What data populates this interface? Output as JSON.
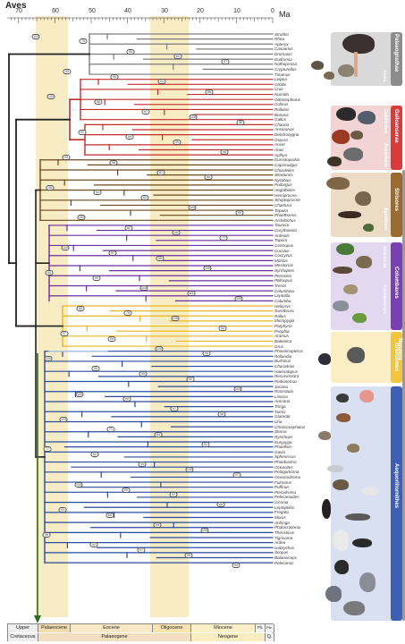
{
  "title": "Aves",
  "axis": {
    "unit": "Ma",
    "ticks": [
      "70",
      "60",
      "50",
      "40",
      "30",
      "20",
      "10",
      "0"
    ]
  },
  "taxa": [
    "Struthio",
    "Rhea",
    "Apteryx",
    "Casuarius",
    "Dromaius",
    "Eudromia",
    "Nothoprocta",
    "Crypturellus",
    "Tinamus",
    "Leipoa",
    "Ortalis",
    "Crax",
    "Numida",
    "Odontophorus",
    "Colinus",
    "Rollulus",
    "Bonasa",
    "Gallus",
    "Chauna",
    "Anseranas",
    "Dendrocygna",
    "Oxyura",
    "Anser",
    "Anas",
    "Aythya",
    "Eurostopodus",
    "Caprimulgus",
    "Chordeiles",
    "Steatornis",
    "Nyctibius",
    "Podargus",
    "Aegotheles",
    "Hemiprocne",
    "Streptoprocne",
    "Chaetura",
    "Topaza",
    "Phaethornis",
    "Archilochus",
    "Tauraco",
    "Corythaeola",
    "Ardeotis",
    "Tapera",
    "Centropus",
    "Cuculus",
    "Coccyzus",
    "Monias",
    "Mesitornis",
    "Syrrhaptes",
    "Pterocles",
    "Ptilinopus",
    "Treron",
    "Columbina",
    "Leptotila",
    "Columba",
    "Heliornis",
    "Sarothrura",
    "Rallus",
    "Micropygia",
    "Porphyrio",
    "Psophia",
    "Aramus",
    "Balearica",
    "Grus",
    "Phoenicopterus",
    "Rollandia",
    "Burhinus",
    "Charadrius",
    "Haematopus",
    "Recurvirostra",
    "Pedionomus",
    "Jacana",
    "Rostratula",
    "Limosa",
    "Arenaria",
    "Tringa",
    "Turnix",
    "Glareola",
    "Uria",
    "Chroicocephalus",
    "Sterna",
    "Rynchops",
    "Eurypyga",
    "Phaethon",
    "Gavia",
    "Spheniscus",
    "Phoebastria",
    "Oceanites",
    "Pelagodroma",
    "Oceanodroma",
    "Fulmarus",
    "Puffinus",
    "Pterodroma",
    "Pelecanoides",
    "Ciconia",
    "Leptoptilos",
    "Fregata",
    "Morus",
    "Anhinga",
    "Phalacrocorax",
    "Theristicus",
    "Tigrisoma",
    "Ardea",
    "Ixobrychus",
    "Scopus",
    "Balaeniceps",
    "Pelecanus"
  ],
  "clades": [
    {
      "name": "Palaeognathae",
      "sub": [
        "Tinam."
      ],
      "color": "#8c8c8c"
    },
    {
      "name": "Galloanserae",
      "sub": [
        "Galliformes",
        "Anseriform."
      ],
      "color": "#d93a3a"
    },
    {
      "name": "Strisores",
      "sub": [
        "Apodiform."
      ],
      "color": "#9a6a2e"
    },
    {
      "name": "Columbaves",
      "sub": [
        "Otidimorph.",
        "Columbimorph."
      ],
      "color": "#7a3fb0"
    },
    {
      "name": "Gruiformes",
      "sub": [],
      "color": "#f2c53d"
    },
    {
      "name": "Aequorlitornithes",
      "sub": [],
      "color": "#3d5fb5"
    },
    {
      "name": "Neoaves",
      "sub": [],
      "color": "#9a9a9a"
    }
  ],
  "time_scale": {
    "epochs": [
      "Upper",
      "Palaeocene",
      "Eocene",
      "Oligocene",
      "Miocene",
      "Pli.",
      "Ple."
    ],
    "periods": [
      "Cretaceous",
      "Palaeogene",
      "Neogene",
      "Q."
    ]
  },
  "node_numbers": [
    "100",
    "79",
    "95",
    "60",
    "97",
    "93",
    "96",
    "93",
    "86",
    "100",
    "98",
    "97",
    "100",
    "98",
    "91",
    "99",
    "99",
    "98",
    "94",
    "96",
    "81",
    "98",
    "95",
    "94",
    "60",
    "100",
    "99",
    "100",
    "62",
    "98",
    "77",
    "100",
    "97",
    "96",
    "100",
    "94",
    "99",
    "100",
    "84",
    "100",
    "85",
    "75",
    "100",
    "90",
    "97",
    "99",
    "100",
    "99",
    "100",
    "96",
    "99",
    "90",
    "100",
    "100",
    "90",
    "97",
    "98",
    "100",
    "71",
    "84",
    "91",
    "77",
    "62",
    "99",
    "100",
    "97",
    "100",
    "90",
    "97",
    "88",
    "93",
    "86",
    "99",
    "100",
    "98",
    "92",
    "97",
    "99",
    "94"
  ],
  "colors": {
    "palaeognathae": "#7d7d7d",
    "galloanserae": "#c42b2b",
    "strisores": "#6b4a1f",
    "columbaves": "#6a2fa0",
    "gruiformes": "#e8b820",
    "aequorlitornithes": "#2a4a9e",
    "neoaves_stem": "#d8d8d8",
    "trunk": "#222222",
    "kpg_arrow": "#2c6b1c",
    "palaeocene_band": "#f6e9b8",
    "oligocene_band": "#f6e9b8"
  }
}
